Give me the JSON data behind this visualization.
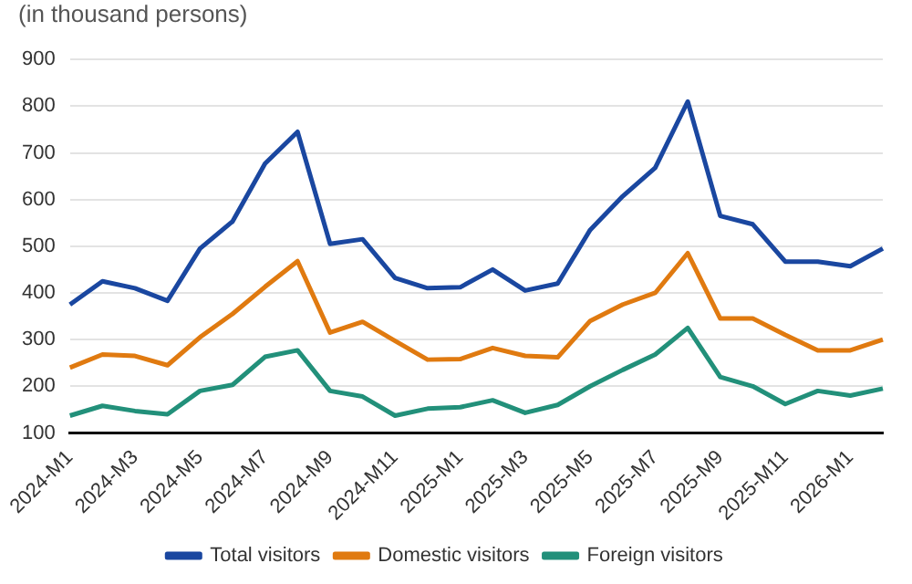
{
  "chart_data": {
    "type": "line",
    "subtitle": "(in thousand persons)",
    "categories": [
      "2024-M1",
      null,
      "2024-M3",
      null,
      "2024-M5",
      null,
      "2024-M7",
      null,
      "2024-M9",
      null,
      "2024-M11",
      null,
      "2025-M1",
      null,
      "2025-M3",
      null,
      "2025-M5",
      null,
      "2025-M7",
      null,
      "2025-M9",
      null,
      "2025-M11",
      null,
      "2026-M1",
      null
    ],
    "series": [
      {
        "name": "Total visitors",
        "color": "#1a47a0",
        "values": [
          375,
          425,
          410,
          383,
          495,
          553,
          677,
          745,
          505,
          515,
          432,
          410,
          412,
          450,
          405,
          420,
          535,
          607,
          668,
          810,
          565,
          547,
          467,
          467,
          457,
          495
        ]
      },
      {
        "name": "Domestic visitors",
        "color": "#e07a10",
        "values": [
          240,
          268,
          265,
          245,
          305,
          355,
          413,
          468,
          315,
          338,
          297,
          257,
          258,
          282,
          265,
          262,
          340,
          375,
          400,
          485,
          345,
          345,
          310,
          277,
          277,
          300
        ]
      },
      {
        "name": "Foreign visitors",
        "color": "#22907a",
        "values": [
          137,
          158,
          147,
          140,
          190,
          203,
          263,
          277,
          190,
          178,
          137,
          152,
          155,
          170,
          143,
          160,
          200,
          235,
          268,
          325,
          220,
          200,
          162,
          190,
          180,
          195
        ]
      }
    ],
    "ylim": [
      100,
      900
    ],
    "yticks": [
      100,
      200,
      300,
      400,
      500,
      600,
      700,
      800,
      900
    ],
    "grid": "y",
    "legend": "bottom",
    "marker": "none",
    "line_style": "solid"
  }
}
